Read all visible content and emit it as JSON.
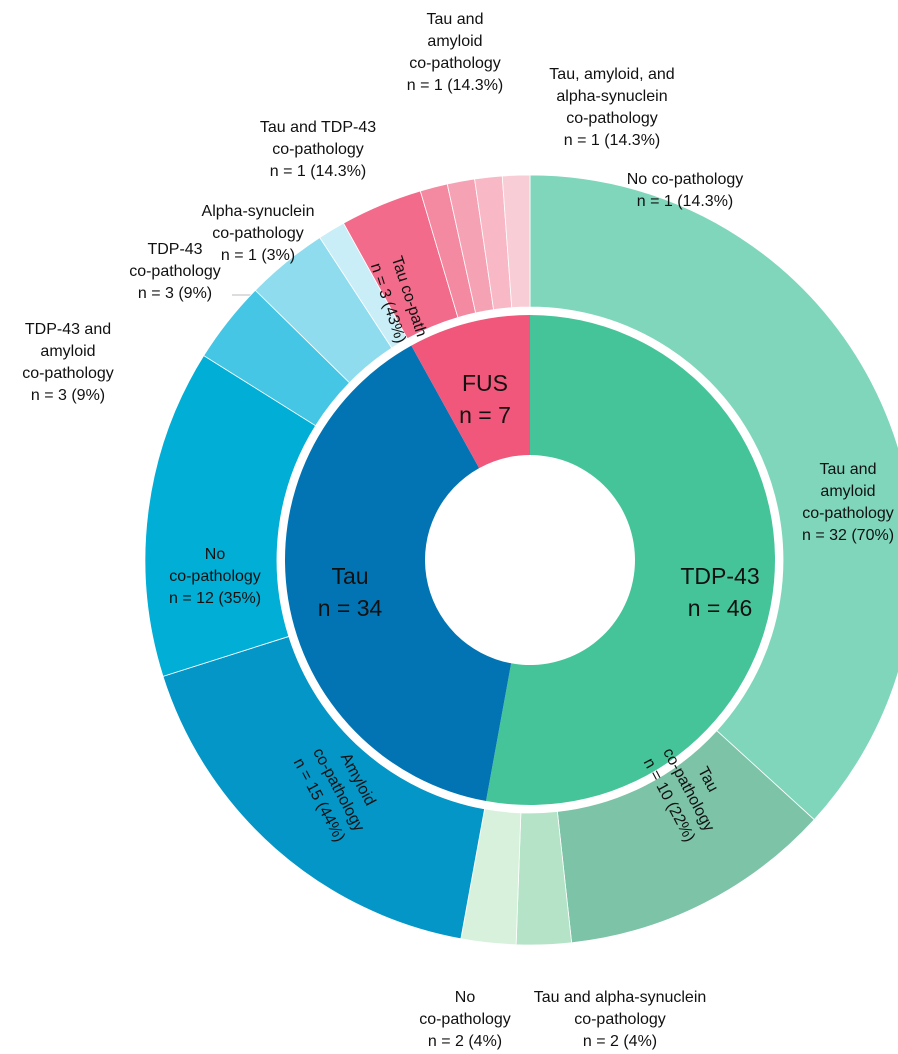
{
  "chart_data": {
    "type": "sunburst",
    "groups": [
      {
        "name": "TDP-43",
        "value": 46,
        "value_label": "n = 46",
        "color": "#45c49a",
        "children": [
          {
            "name": [
              "Tau and",
              "amyloid",
              "co-pathology"
            ],
            "value": 32,
            "value_label": "n = 32 (70%)",
            "color": "#7fd6bb"
          },
          {
            "name": [
              "Tau",
              "co-pathology"
            ],
            "value": 10,
            "value_label": "n = 10 (22%)",
            "color": "#7cc3a8"
          },
          {
            "name": [
              "Tau and alpha-synuclein",
              "co-pathology"
            ],
            "value": 2,
            "value_label": "n = 2 (4%)",
            "color": "#b5e3c8"
          },
          {
            "name": [
              "No",
              "co-pathology"
            ],
            "value": 2,
            "value_label": "n = 2 (4%)",
            "color": "#d8f1dd"
          }
        ]
      },
      {
        "name": "Tau",
        "value": 34,
        "value_label": "n = 34",
        "color": "#0274b3",
        "children": [
          {
            "name": [
              "Amyloid",
              "co-pathology"
            ],
            "value": 15,
            "value_label": "n = 15 (44%)",
            "color": "#0396c7"
          },
          {
            "name": [
              "No",
              "co-pathology"
            ],
            "value": 12,
            "value_label": "n = 12 (35%)",
            "color": "#00aed6"
          },
          {
            "name": [
              "TDP-43 and",
              "amyloid",
              "co-pathology"
            ],
            "value": 3,
            "value_label": "n = 3 (9%)",
            "color": "#45c6e4"
          },
          {
            "name": [
              "TDP-43",
              "co-pathology"
            ],
            "value": 3,
            "value_label": "n = 3 (9%)",
            "color": "#8fdcef"
          },
          {
            "name": [
              "Alpha-synuclein",
              "co-pathology"
            ],
            "value": 1,
            "value_label": "n = 1 (3%)",
            "color": "#c9eef7"
          }
        ]
      },
      {
        "name": "FUS",
        "value": 7,
        "value_label": "n = 7",
        "color": "#f0577a",
        "children": [
          {
            "name": [
              "Tau co-path"
            ],
            "value": 3,
            "value_label": "n = 3 (43%)",
            "color": "#f26b8a"
          },
          {
            "name": [
              "Tau and TDP-43",
              "co-pathology"
            ],
            "value": 1,
            "value_label": "n = 1 (14.3%)",
            "color": "#f48aa2"
          },
          {
            "name": [
              "Tau and",
              "amyloid",
              "co-pathology"
            ],
            "value": 1,
            "value_label": "n = 1 (14.3%)",
            "color": "#f6a2b5"
          },
          {
            "name": [
              "Tau, amyloid, and",
              "alpha-synuclein",
              "co-pathology"
            ],
            "value": 1,
            "value_label": "n = 1 (14.3%)",
            "color": "#f8b8c6"
          },
          {
            "name": [
              "No co-pathology"
            ],
            "value": 1,
            "value_label": "n = 1 (14.3%)",
            "color": "#f9cdd6"
          }
        ]
      }
    ]
  }
}
